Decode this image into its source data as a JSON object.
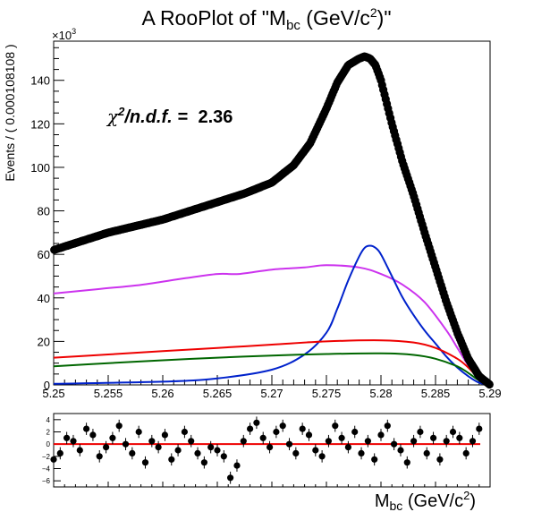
{
  "chart_data": [
    {
      "type": "scatter",
      "title": "A RooPlot of \"M_bc (GeV/c^2)\"",
      "title_parts": {
        "prefix": "A RooPlot of \"M",
        "sub": "bc",
        "mid": " (GeV/c",
        "sup": "2",
        "suffix": ")\""
      },
      "ylabel": "Events / ( 0.000108108 )",
      "y_multiplier": "×10",
      "y_multiplier_exp": "3",
      "xlim": [
        5.25,
        5.29
      ],
      "ylim": [
        0,
        158
      ],
      "xticks": [
        5.25,
        5.255,
        5.26,
        5.265,
        5.27,
        5.275,
        5.28,
        5.285,
        5.29
      ],
      "xtick_labels": [
        "5.25",
        "5.255",
        "5.26",
        "5.265",
        "5.27",
        "5.275",
        "5.28",
        "5.285",
        "5.29"
      ],
      "yticks": [
        0,
        20,
        40,
        60,
        80,
        100,
        120,
        140
      ],
      "ytick_labels": [
        "0",
        "20",
        "40",
        "60",
        "80",
        "100",
        "120",
        "140"
      ],
      "annotation": {
        "lhs": "χ",
        "sup": "2",
        "mid": "/n.d.f. = ",
        "value": "2.36"
      },
      "series": [
        {
          "kind": "data-points",
          "color": "#000000",
          "x": [
            5.25,
            5.2525,
            5.255,
            5.2575,
            5.26,
            5.2625,
            5.265,
            5.2675,
            5.27,
            5.272,
            5.2735,
            5.275,
            5.276,
            5.277,
            5.278,
            5.2785,
            5.279,
            5.2795,
            5.28,
            5.281,
            5.282,
            5.283,
            5.284,
            5.285,
            5.286,
            5.287,
            5.288,
            5.289,
            5.29
          ],
          "y": [
            62,
            66,
            70,
            73,
            76,
            80,
            84,
            88,
            93,
            101,
            111,
            127,
            139,
            147,
            150,
            151,
            150,
            147,
            140,
            120,
            102,
            87,
            70,
            54,
            38,
            24,
            12,
            4,
            0
          ]
        },
        {
          "kind": "curve",
          "color": "#cc33ee",
          "x": [
            5.25,
            5.254,
            5.258,
            5.262,
            5.265,
            5.267,
            5.27,
            5.273,
            5.275,
            5.278,
            5.28,
            5.282,
            5.284,
            5.286,
            5.287,
            5.288,
            5.289,
            5.29
          ],
          "y": [
            42,
            44,
            46,
            49,
            51,
            51,
            53,
            54,
            55,
            54,
            51,
            46,
            38,
            25,
            17,
            9,
            3,
            0
          ]
        },
        {
          "kind": "curve",
          "color": "#0022cc",
          "x": [
            5.25,
            5.26,
            5.265,
            5.27,
            5.273,
            5.275,
            5.276,
            5.277,
            5.278,
            5.2785,
            5.279,
            5.2795,
            5.28,
            5.281,
            5.282,
            5.283,
            5.284,
            5.285,
            5.286,
            5.287,
            5.288,
            5.289,
            5.29
          ],
          "y": [
            0.5,
            1.5,
            3,
            7,
            14,
            24,
            35,
            48,
            59,
            63,
            64,
            63,
            60,
            50,
            40,
            32,
            25,
            19,
            13,
            8,
            4,
            1,
            0
          ]
        },
        {
          "kind": "curve",
          "color": "#ee0000",
          "x": [
            5.25,
            5.255,
            5.26,
            5.265,
            5.27,
            5.275,
            5.28,
            5.283,
            5.285,
            5.287,
            5.288,
            5.289,
            5.29
          ],
          "y": [
            12.5,
            14,
            15.5,
            17,
            18.5,
            20,
            20.5,
            19.5,
            17,
            12,
            8,
            3,
            0
          ]
        },
        {
          "kind": "curve",
          "color": "#006600",
          "x": [
            5.25,
            5.255,
            5.26,
            5.265,
            5.27,
            5.275,
            5.28,
            5.283,
            5.285,
            5.287,
            5.288,
            5.289,
            5.29
          ],
          "y": [
            8.5,
            10,
            11.3,
            12.5,
            13.5,
            14.2,
            14.5,
            13.8,
            12,
            8.5,
            5.5,
            2,
            0
          ]
        }
      ]
    },
    {
      "type": "scatter",
      "xlabel_parts": {
        "prefix": "M",
        "sub": "bc",
        "mid": " (GeV/c",
        "sup": "2",
        "suffix": ")"
      },
      "xlim": [
        5.25,
        5.29
      ],
      "ylim": [
        -7,
        5
      ],
      "yticks": [
        -6,
        -4,
        -2,
        0,
        2,
        4
      ],
      "ytick_labels": [
        "−6",
        "−4",
        "−2",
        "0",
        "2",
        "4"
      ],
      "zero_line_color": "#ee0000",
      "series": [
        {
          "kind": "pull-points",
          "color": "#000000",
          "x": [
            5.25,
            5.2506,
            5.2512,
            5.2518,
            5.2524,
            5.253,
            5.2536,
            5.2542,
            5.2548,
            5.2554,
            5.256,
            5.2566,
            5.2572,
            5.2578,
            5.2584,
            5.259,
            5.2596,
            5.2602,
            5.2608,
            5.2614,
            5.262,
            5.2626,
            5.2632,
            5.2638,
            5.2644,
            5.265,
            5.2656,
            5.2662,
            5.2668,
            5.2674,
            5.268,
            5.2686,
            5.2692,
            5.2698,
            5.2704,
            5.271,
            5.2716,
            5.2722,
            5.2728,
            5.2734,
            5.274,
            5.2746,
            5.2752,
            5.2758,
            5.2764,
            5.277,
            5.2776,
            5.2782,
            5.2788,
            5.2794,
            5.28,
            5.2806,
            5.2812,
            5.2818,
            5.2824,
            5.283,
            5.2836,
            5.2842,
            5.2848,
            5.2854,
            5.286,
            5.2866,
            5.2872,
            5.2878,
            5.2884,
            5.289
          ],
          "y": [
            -2.5,
            -1.5,
            1.0,
            0.5,
            -1.0,
            2.5,
            1.5,
            -2.0,
            -0.5,
            1.0,
            3.0,
            0.0,
            -1.5,
            2.0,
            -3.0,
            0.5,
            -0.5,
            1.5,
            -2.5,
            -1.0,
            2.0,
            0.5,
            -1.5,
            -3.0,
            -0.5,
            -1.0,
            -2.0,
            -5.5,
            -3.5,
            0.5,
            2.5,
            3.5,
            1.0,
            -0.5,
            2.0,
            3.0,
            0.0,
            -1.5,
            2.5,
            1.5,
            -1.0,
            -2.0,
            0.5,
            3.0,
            1.0,
            -0.5,
            2.0,
            -1.5,
            0.5,
            -2.5,
            1.5,
            3.0,
            0.0,
            -1.0,
            -3.0,
            0.5,
            2.0,
            -1.5,
            1.0,
            -2.5,
            0.5,
            2.0,
            1.0,
            -1.5,
            0.5,
            2.5
          ]
        }
      ]
    }
  ]
}
